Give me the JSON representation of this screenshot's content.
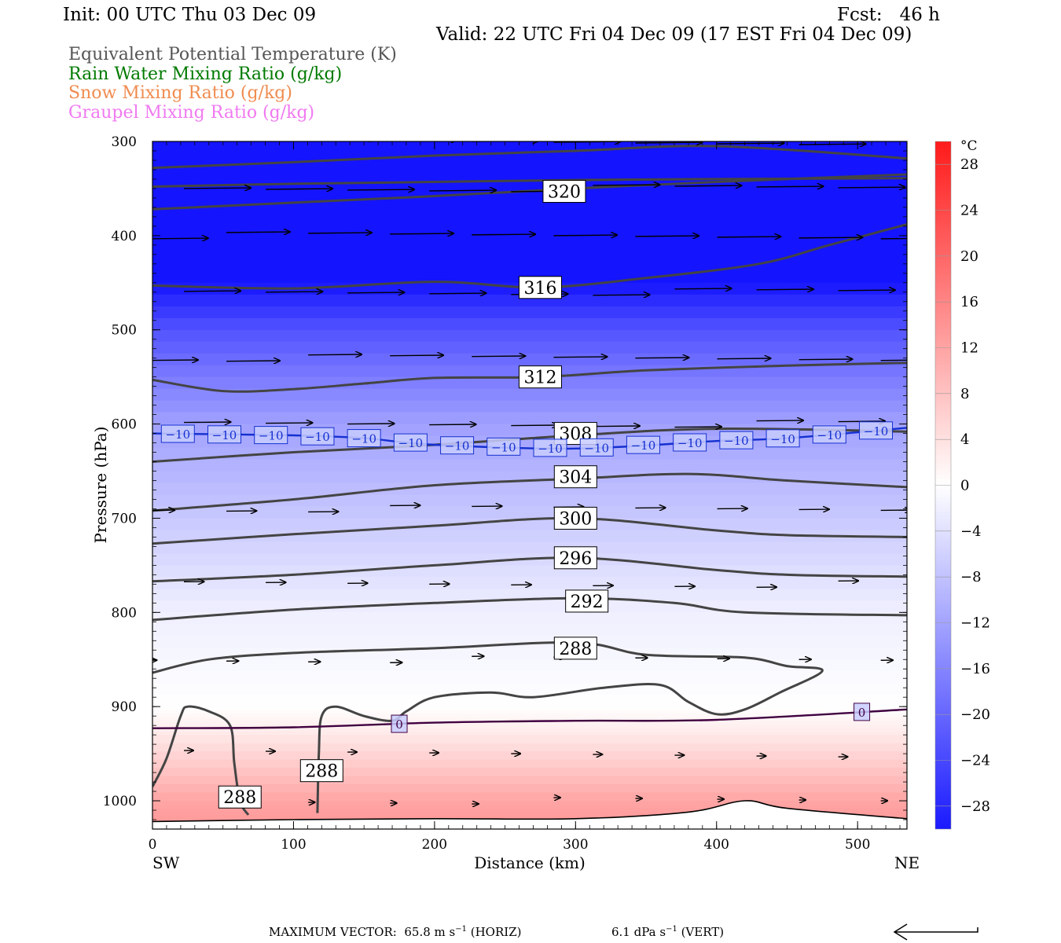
{
  "header": {
    "init": "Init: 00 UTC Thu 03 Dec 09",
    "fcst": "Fcst:   46 h",
    "valid": "Valid: 22 UTC Fri 04 Dec 09 (17 EST Fri 04 Dec 09)"
  },
  "legend": {
    "items": [
      {
        "label": "Equivalent Potential Temperature (K)",
        "color": "#555555"
      },
      {
        "label": "Rain Water Mixing Ratio (g/kg)",
        "color": "#007a00"
      },
      {
        "label": "Snow Mixing Ratio (g/kg)",
        "color": "#f08c50"
      },
      {
        "label": "Graupel Mixing Ratio (g/kg)",
        "color": "#f07af0"
      }
    ]
  },
  "chart_data": {
    "type": "cross-section",
    "xlabel": "Distance (km)",
    "ylabel": "Pressure (hPa)",
    "xlim": [
      0,
      535
    ],
    "ylim": [
      1030,
      300
    ],
    "x_ticks": [
      0,
      100,
      200,
      300,
      400,
      500
    ],
    "y_ticks": [
      300,
      400,
      500,
      600,
      700,
      800,
      900,
      1000
    ],
    "x_end_labels": {
      "left": "SW",
      "right": "NE"
    },
    "temperature_fill": {
      "unit": "°C",
      "colorbar_ticks": [
        28,
        24,
        20,
        16,
        12,
        8,
        4,
        0,
        -4,
        -8,
        -12,
        -16,
        -20,
        -24,
        -28
      ],
      "levels": [
        {
          "p": 300,
          "t": -50
        },
        {
          "p": 400,
          "t": -38
        },
        {
          "p": 500,
          "t": -22
        },
        {
          "p": 600,
          "t": -12
        },
        {
          "p": 700,
          "t": -7
        },
        {
          "p": 800,
          "t": -2
        },
        {
          "p": 900,
          "t": 0
        },
        {
          "p": 930,
          "t": 3
        },
        {
          "p": 1000,
          "t": 12
        },
        {
          "p": 1030,
          "t": 14
        }
      ]
    },
    "theta_e_contours": [
      {
        "label": "320",
        "label_at": [
          292,
          353
        ],
        "points": [
          [
            0,
            348
          ],
          [
            100,
            345
          ],
          [
            200,
            343
          ],
          [
            300,
            341
          ],
          [
            400,
            340
          ],
          [
            535,
            339
          ]
        ]
      },
      {
        "label": "",
        "points": [
          [
            0,
            372
          ],
          [
            100,
            365
          ],
          [
            200,
            358
          ],
          [
            300,
            350
          ],
          [
            400,
            343
          ],
          [
            535,
            335
          ]
        ]
      },
      {
        "label": "",
        "points": [
          [
            0,
            328
          ],
          [
            100,
            322
          ],
          [
            200,
            315
          ],
          [
            300,
            310
          ],
          [
            400,
            305
          ],
          [
            535,
            318
          ]
        ]
      },
      {
        "label": "316",
        "label_at": [
          275,
          455
        ],
        "points": [
          [
            0,
            453
          ],
          [
            100,
            456
          ],
          [
            200,
            449
          ],
          [
            275,
            455
          ],
          [
            350,
            445
          ],
          [
            430,
            430
          ],
          [
            480,
            410
          ],
          [
            535,
            388
          ]
        ]
      },
      {
        "label": "312",
        "label_at": [
          275,
          550
        ],
        "points": [
          [
            0,
            553
          ],
          [
            50,
            565
          ],
          [
            100,
            563
          ],
          [
            150,
            557
          ],
          [
            200,
            551
          ],
          [
            275,
            550
          ],
          [
            350,
            543
          ],
          [
            450,
            538
          ],
          [
            535,
            535
          ]
        ]
      },
      {
        "label": "308",
        "label_at": [
          300,
          610
        ],
        "points": [
          [
            0,
            640
          ],
          [
            100,
            630
          ],
          [
            200,
            622
          ],
          [
            300,
            612
          ],
          [
            400,
            605
          ],
          [
            535,
            608
          ]
        ]
      },
      {
        "label": "304",
        "label_at": [
          300,
          656
        ],
        "points": [
          [
            0,
            692
          ],
          [
            100,
            680
          ],
          [
            200,
            665
          ],
          [
            300,
            658
          ],
          [
            380,
            653
          ],
          [
            450,
            660
          ],
          [
            535,
            667
          ]
        ]
      },
      {
        "label": "300",
        "label_at": [
          300,
          700
        ],
        "points": [
          [
            0,
            727
          ],
          [
            100,
            717
          ],
          [
            200,
            708
          ],
          [
            300,
            700
          ],
          [
            400,
            713
          ],
          [
            450,
            718
          ],
          [
            535,
            720
          ]
        ]
      },
      {
        "label": "296",
        "label_at": [
          300,
          742
        ],
        "points": [
          [
            0,
            767
          ],
          [
            100,
            760
          ],
          [
            200,
            750
          ],
          [
            300,
            742
          ],
          [
            400,
            755
          ],
          [
            450,
            760
          ],
          [
            535,
            762
          ]
        ]
      },
      {
        "label": "292",
        "label_at": [
          308,
          788
        ],
        "points": [
          [
            0,
            808
          ],
          [
            100,
            797
          ],
          [
            200,
            790
          ],
          [
            300,
            785
          ],
          [
            370,
            790
          ],
          [
            420,
            800
          ],
          [
            535,
            803
          ]
        ]
      },
      {
        "label": "288",
        "label_at": [
          300,
          838
        ],
        "points": [
          [
            0,
            864
          ],
          [
            40,
            850
          ],
          [
            100,
            843
          ],
          [
            200,
            838
          ],
          [
            300,
            832
          ],
          [
            350,
            845
          ],
          [
            420,
            848
          ],
          [
            450,
            857
          ],
          [
            475,
            862
          ],
          [
            445,
            885
          ],
          [
            420,
            903
          ],
          [
            400,
            908
          ],
          [
            380,
            895
          ],
          [
            360,
            877
          ],
          [
            320,
            880
          ],
          [
            270,
            890
          ],
          [
            240,
            885
          ],
          [
            200,
            890
          ],
          [
            180,
            905
          ],
          [
            170,
            915
          ],
          [
            150,
            910
          ],
          [
            130,
            900
          ],
          [
            120,
            910
          ],
          [
            118,
            950
          ],
          [
            117,
            1013
          ]
        ]
      },
      {
        "label": "288",
        "label_at": [
          120,
          968
        ],
        "points": []
      },
      {
        "label": "288",
        "label_at": [
          62,
          996
        ],
        "points": [
          [
            0,
            985
          ],
          [
            10,
            955
          ],
          [
            20,
            910
          ],
          [
            25,
            900
          ],
          [
            40,
            905
          ],
          [
            55,
            920
          ],
          [
            58,
            960
          ],
          [
            62,
            1000
          ],
          [
            68,
            1015
          ]
        ]
      }
    ],
    "isotherms": [
      {
        "temp": -10,
        "label": "−10",
        "points": [
          [
            0,
            610
          ],
          [
            100,
            612
          ],
          [
            150,
            615
          ],
          [
            200,
            622
          ],
          [
            300,
            626
          ],
          [
            400,
            618
          ],
          [
            450,
            615
          ],
          [
            535,
            604
          ]
        ]
      },
      {
        "temp": 0,
        "label": "0",
        "points": [
          [
            0,
            923
          ],
          [
            100,
            922
          ],
          [
            200,
            917
          ],
          [
            300,
            915
          ],
          [
            400,
            914
          ],
          [
            535,
            903
          ]
        ]
      }
    ],
    "terrain": {
      "points": [
        [
          0,
          1022
        ],
        [
          100,
          1020
        ],
        [
          200,
          1019
        ],
        [
          300,
          1019
        ],
        [
          380,
          1012
        ],
        [
          420,
          1000
        ],
        [
          450,
          1008
        ],
        [
          535,
          1019
        ]
      ]
    },
    "wind_vectors": {
      "rows_hPa": [
        300,
        350,
        400,
        460,
        530,
        600,
        690,
        770,
        850,
        950,
        1000
      ],
      "u_rel": [
        1.0,
        1.0,
        0.95,
        0.85,
        0.8,
        0.7,
        0.45,
        0.3,
        0.18,
        0.14,
        0.1
      ]
    },
    "vector_scale": {
      "text": "MAXIMUM VECTOR:  65.8 m s",
      "horiz_suffix": " (HORIZ)",
      "vert_text": "6.1 dPa s",
      "vert_suffix": " (VERT)"
    }
  }
}
